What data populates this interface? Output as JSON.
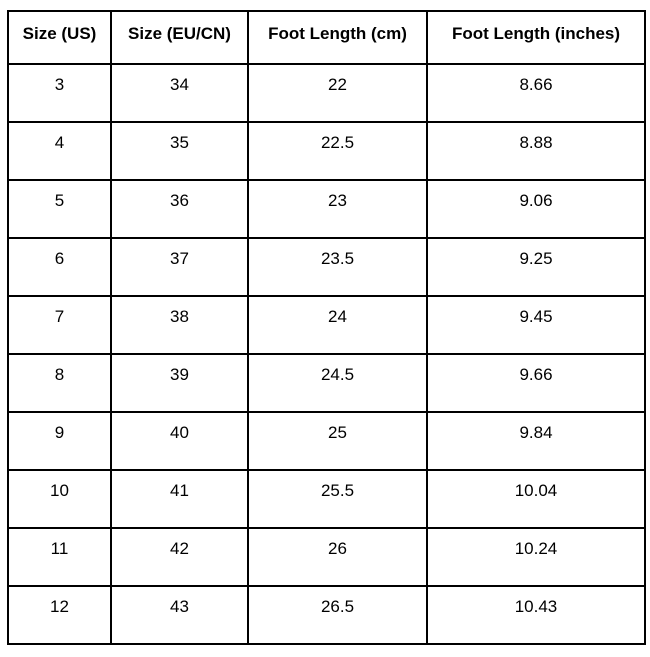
{
  "table": {
    "columns": [
      "Size (US)",
      "Size (EU/CN)",
      "Foot Length (cm)",
      "Foot Length (inches)"
    ],
    "rows": [
      [
        "3",
        "34",
        "22",
        "8.66"
      ],
      [
        "4",
        "35",
        "22.5",
        "8.88"
      ],
      [
        "5",
        "36",
        "23",
        "9.06"
      ],
      [
        "6",
        "37",
        "23.5",
        "9.25"
      ],
      [
        "7",
        "38",
        "24",
        "9.45"
      ],
      [
        "8",
        "39",
        "24.5",
        "9.66"
      ],
      [
        "9",
        "40",
        "25",
        "9.84"
      ],
      [
        "10",
        "41",
        "25.5",
        "10.04"
      ],
      [
        "11",
        "42",
        "26",
        "10.24"
      ],
      [
        "12",
        "43",
        "26.5",
        "10.43"
      ]
    ],
    "colors": {
      "border": "#000000",
      "background": "#ffffff",
      "text": "#000000"
    }
  }
}
